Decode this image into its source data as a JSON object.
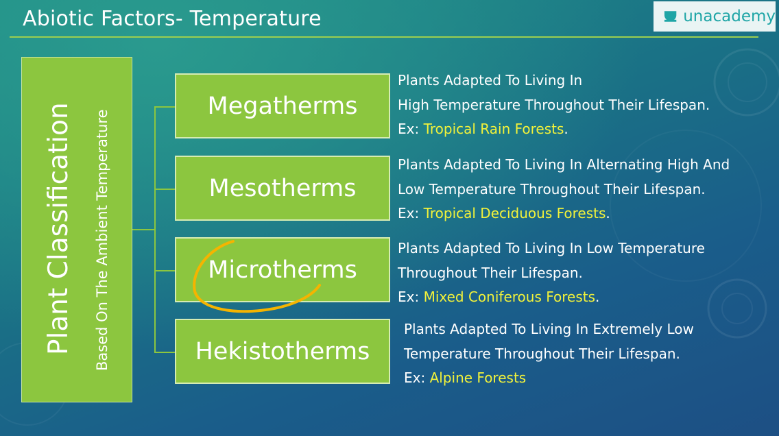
{
  "header": {
    "title": "Abiotic Factors- Temperature",
    "brand": "unacademy",
    "brand_color": "#1ea5a6"
  },
  "diagram": {
    "main_label": "Plant Classification",
    "sub_label": "Based On The Ambient Temperature",
    "accent_color": "#8cc63f",
    "highlight_color": "#f2f23a",
    "categories": [
      {
        "name": "Megatherms",
        "line1": "Plants Adapted To Living In",
        "line2": "High Temperature Throughout Their Lifespan.",
        "ex_label": "Ex: ",
        "example": "Tropical Rain Forests",
        "ex_end": "."
      },
      {
        "name": "Mesotherms",
        "line1": "Plants Adapted To Living In Alternating High And",
        "line2": "Low Temperature Throughout Their Lifespan.",
        "ex_label": "Ex: ",
        "example": "Tropical Deciduous Forests",
        "ex_end": "."
      },
      {
        "name": "Microtherms",
        "line1": "Plants Adapted To Living In Low Temperature",
        "line2": "Throughout Their Lifespan.",
        "ex_label": "Ex: ",
        "example": "Mixed Coniferous Forests",
        "ex_end": "."
      },
      {
        "name": "Hekistotherms",
        "line1": "Plants Adapted To Living In Extremely Low",
        "line2": "Temperature Throughout Their Lifespan.",
        "ex_label": "Ex: ",
        "example": "Alpine Forests",
        "ex_end": ""
      }
    ]
  }
}
